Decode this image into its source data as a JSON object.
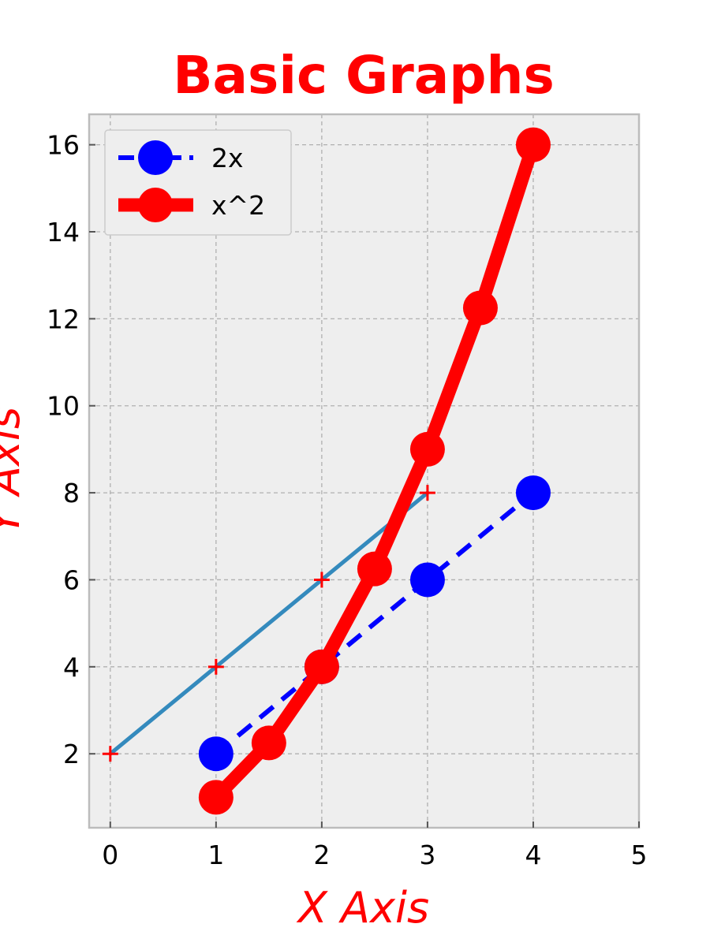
{
  "chart_data": {
    "type": "line",
    "title": "Basic Graphs",
    "xlabel": "X Axis",
    "ylabel": "Y Axis",
    "xlim": [
      -0.2,
      5
    ],
    "ylim": [
      0.3,
      16.7
    ],
    "xticks": [
      0,
      1,
      2,
      3,
      4,
      5
    ],
    "yticks": [
      2,
      4,
      6,
      8,
      10,
      12,
      14,
      16
    ],
    "grid": true,
    "legend_position": "top-left",
    "background": "#eeeeee",
    "series": [
      {
        "name": "2x",
        "x": [
          1,
          2,
          3,
          4
        ],
        "y": [
          2,
          4,
          6,
          8
        ],
        "color": "#0000ff",
        "linestyle": "dashed",
        "marker": "circle",
        "in_legend": true
      },
      {
        "name": "x^2",
        "x": [
          1,
          1.5,
          2,
          2.5,
          3,
          3.5,
          4
        ],
        "y": [
          1,
          2.25,
          4,
          6.25,
          9,
          12.25,
          16
        ],
        "color": "#ff0000",
        "linestyle": "solid",
        "marker": "circle",
        "in_legend": true
      },
      {
        "name": "",
        "x": [
          0,
          1,
          2,
          3
        ],
        "y": [
          2,
          4,
          6,
          8
        ],
        "color": "#348abd",
        "marker_color": "#ff0000",
        "linestyle": "solid",
        "marker": "plus",
        "in_legend": false
      }
    ]
  }
}
